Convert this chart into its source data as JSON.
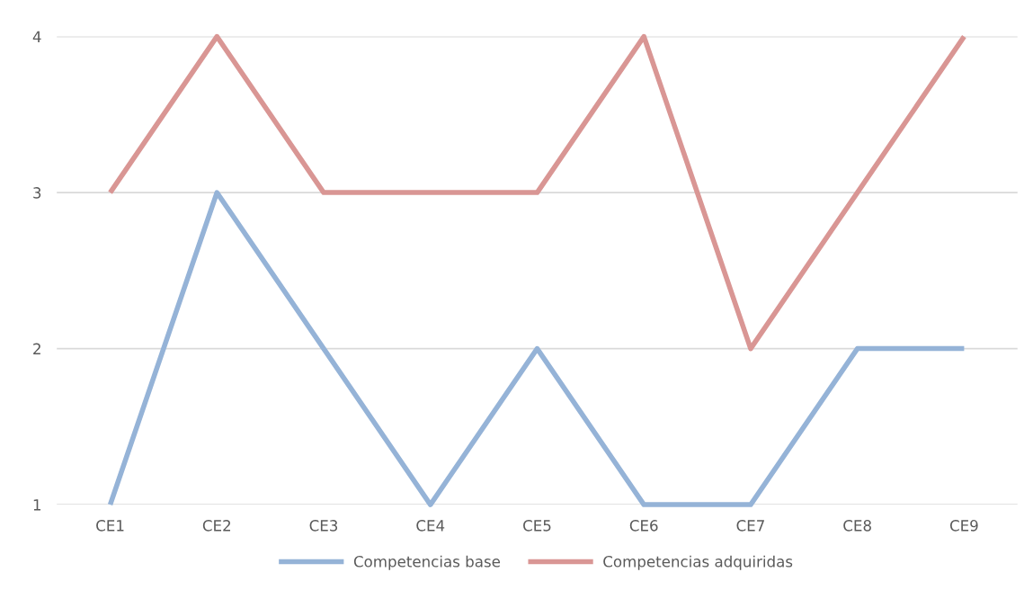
{
  "chart_data": {
    "type": "line",
    "categories": [
      "CE1",
      "CE2",
      "CE3",
      "CE4",
      "CE5",
      "CE6",
      "CE7",
      "CE8",
      "CE9"
    ],
    "series": [
      {
        "name": "Competencias base",
        "color": "#95b3d7",
        "values": [
          1,
          3,
          2,
          1,
          2,
          1,
          1,
          2,
          2
        ]
      },
      {
        "name": "Competencias adquiridas",
        "color": "#d99694",
        "values": [
          3,
          4,
          3,
          3,
          3,
          4,
          2,
          3,
          4
        ]
      }
    ],
    "ylim": [
      1,
      4
    ],
    "yticks": [
      1,
      2,
      3,
      4
    ],
    "grid": "y",
    "legend": "bottom",
    "marker": "none",
    "line_style": "solid"
  }
}
